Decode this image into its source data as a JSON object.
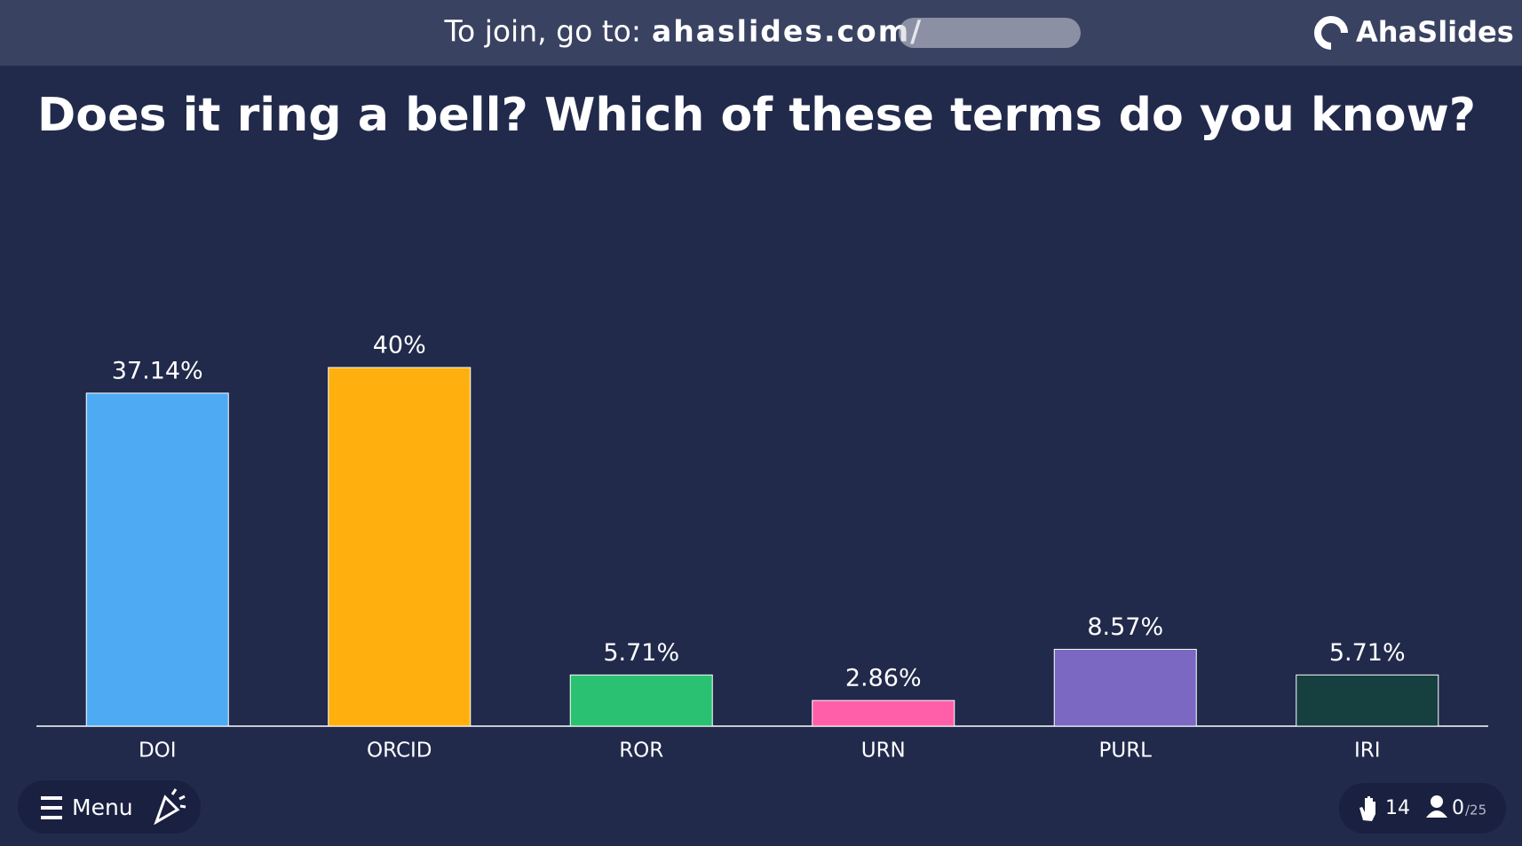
{
  "header": {
    "join_text": "To join, go to:",
    "url": "ahaslides.com/",
    "brand": "AhaSlides"
  },
  "chart_data": {
    "type": "bar",
    "title": "Does it ring a bell? Which of these terms do you know?",
    "categories": [
      "DOI",
      "ORCID",
      "ROR",
      "URN",
      "PURL",
      "IRI"
    ],
    "values": [
      37.14,
      40,
      5.71,
      2.86,
      8.57,
      5.71
    ],
    "value_labels": [
      "37.14%",
      "40%",
      "5.71%",
      "2.86%",
      "8.57%",
      "5.71%"
    ],
    "colors": [
      "#4eabf3",
      "#ffb00f",
      "#2ac272",
      "#ff5fa8",
      "#7a68c2",
      "#15403f"
    ]
  },
  "footer": {
    "menu": "Menu",
    "responses": "14",
    "participants": "0",
    "capacity": "/25"
  }
}
